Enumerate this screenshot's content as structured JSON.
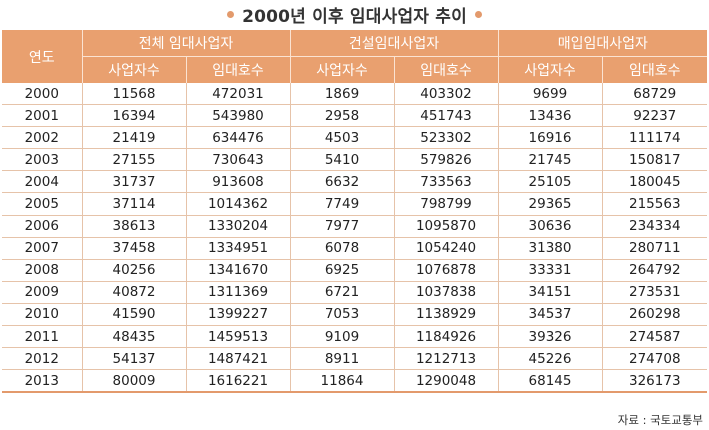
{
  "title": "2000년 이후 임대사업자 추이",
  "source": "자료 : 국토교통부",
  "colors": {
    "header_bg": "#e9a06f",
    "accent_dot": "#e39a6c",
    "rule": "#e6c3a9"
  },
  "chart_data": {
    "type": "table",
    "title": "2000년 이후 임대사업자 추이",
    "year_header": "연도",
    "groups": [
      {
        "name": "전체 임대사업자",
        "columns": [
          "사업자수",
          "임대호수"
        ]
      },
      {
        "name": "건설임대사업자",
        "columns": [
          "사업자수",
          "임대호수"
        ]
      },
      {
        "name": "매입임대사업자",
        "columns": [
          "사업자수",
          "임대호수"
        ]
      }
    ],
    "rows": [
      [
        "2000",
        "11568",
        "472031",
        "1869",
        "403302",
        "9699",
        "68729"
      ],
      [
        "2001",
        "16394",
        "543980",
        "2958",
        "451743",
        "13436",
        "92237"
      ],
      [
        "2002",
        "21419",
        "634476",
        "4503",
        "523302",
        "16916",
        "111174"
      ],
      [
        "2003",
        "27155",
        "730643",
        "5410",
        "579826",
        "21745",
        "150817"
      ],
      [
        "2004",
        "31737",
        "913608",
        "6632",
        "733563",
        "25105",
        "180045"
      ],
      [
        "2005",
        "37114",
        "1014362",
        "7749",
        "798799",
        "29365",
        "215563"
      ],
      [
        "2006",
        "38613",
        "1330204",
        "7977",
        "1095870",
        "30636",
        "234334"
      ],
      [
        "2007",
        "37458",
        "1334951",
        "6078",
        "1054240",
        "31380",
        "280711"
      ],
      [
        "2008",
        "40256",
        "1341670",
        "6925",
        "1076878",
        "33331",
        "264792"
      ],
      [
        "2009",
        "40872",
        "1311369",
        "6721",
        "1037838",
        "34151",
        "273531"
      ],
      [
        "2010",
        "41590",
        "1399227",
        "7053",
        "1138929",
        "34537",
        "260298"
      ],
      [
        "2011",
        "48435",
        "1459513",
        "9109",
        "1184926",
        "39326",
        "274587"
      ],
      [
        "2012",
        "54137",
        "1487421",
        "8911",
        "1212713",
        "45226",
        "274708"
      ],
      [
        "2013",
        "80009",
        "1616221",
        "11864",
        "1290048",
        "68145",
        "326173"
      ]
    ]
  }
}
